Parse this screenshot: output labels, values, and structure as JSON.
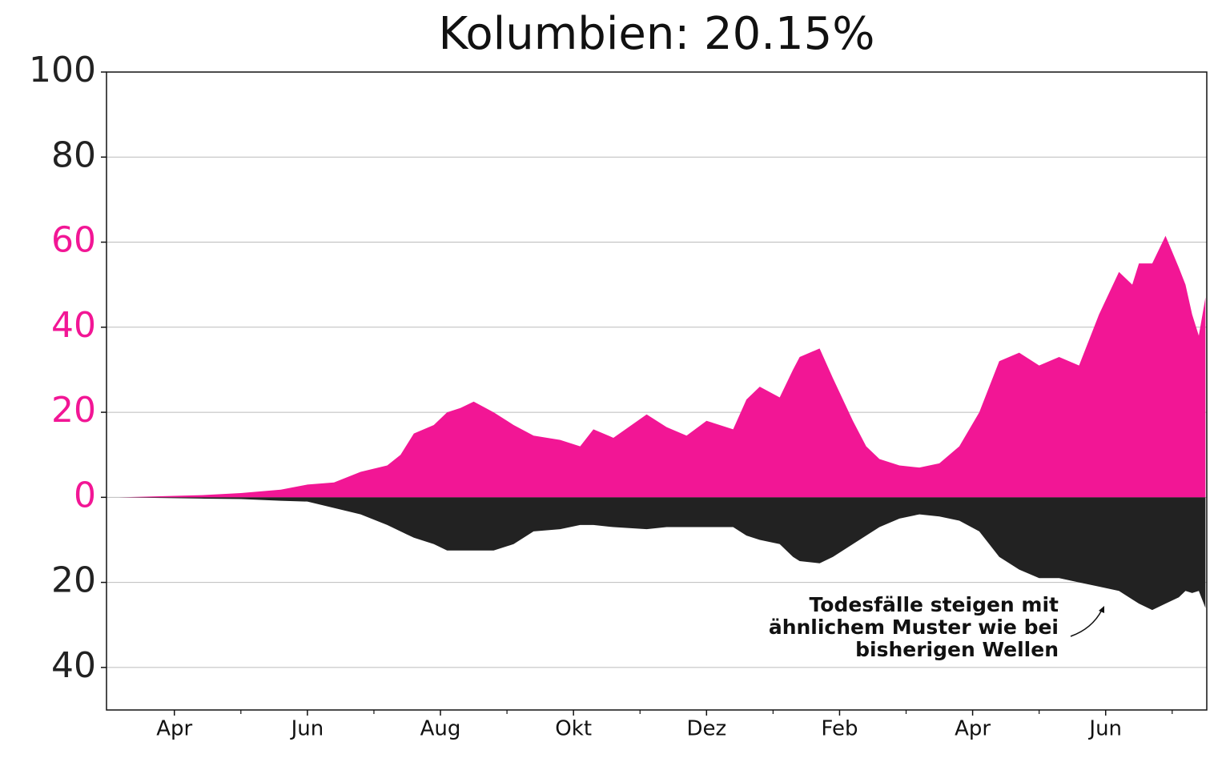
{
  "chart_data": {
    "type": "area",
    "title": "Kolumbien: 20.15%",
    "x": [
      0.17,
      1.4,
      2.0,
      2.6,
      3.0,
      3.4,
      3.8,
      4.2,
      4.4,
      4.6,
      4.9,
      5.1,
      5.3,
      5.5,
      5.8,
      6.1,
      6.4,
      6.8,
      7.1,
      7.3,
      7.6,
      8.1,
      8.4,
      8.7,
      9.0,
      9.4,
      9.6,
      9.8,
      10.1,
      10.3,
      10.4,
      10.7,
      10.9,
      11.2,
      11.4,
      11.6,
      11.9,
      12.2,
      12.5,
      12.8,
      13.1,
      13.4,
      13.7,
      14.0,
      14.3,
      14.6,
      14.9,
      15.2,
      15.4,
      15.5,
      15.7,
      15.9,
      16.1,
      16.2,
      16.3,
      16.4,
      16.5
    ],
    "series": [
      {
        "color": "#f21695",
        "values": [
          0,
          0.5,
          1,
          1.8,
          3,
          3.5,
          6,
          7.5,
          10,
          15,
          17,
          20,
          21,
          22.5,
          20,
          17,
          14.5,
          13.5,
          12,
          16,
          14,
          19.5,
          16.5,
          14.5,
          18,
          16,
          23,
          26,
          23.5,
          30,
          33,
          35,
          28,
          18,
          12,
          9,
          7.5,
          7,
          8,
          12,
          20,
          32,
          34,
          31,
          33,
          31,
          43,
          53,
          50,
          55,
          55,
          61.5,
          54,
          50,
          43,
          38,
          47
        ]
      },
      {
        "color": "#222222",
        "values": [
          0,
          -0.3,
          -0.4,
          -0.8,
          -1,
          -2.5,
          -4,
          -6.5,
          -8,
          -9.5,
          -11,
          -12.5,
          -12.5,
          -12.5,
          -12.5,
          -11,
          -8,
          -7.5,
          -6.5,
          -6.5,
          -7,
          -7.5,
          -7,
          -7,
          -7,
          -7,
          -9,
          -10,
          -11,
          -14,
          -15,
          -15.5,
          -14,
          -11,
          -9,
          -7,
          -5,
          -4,
          -4.5,
          -5.5,
          -8,
          -14,
          -17,
          -19,
          -19,
          -20,
          -21,
          -22,
          -24,
          -25,
          -26.5,
          -25,
          -23.5,
          -22,
          -22.5,
          -22,
          -26
        ]
      }
    ],
    "xlim": [
      -0.02,
      16.52
    ],
    "xticks": [
      {
        "value": 1,
        "label": "Apr"
      },
      {
        "value": 3,
        "label": "Jun"
      },
      {
        "value": 5,
        "label": "Aug"
      },
      {
        "value": 7,
        "label": "Okt"
      },
      {
        "value": 9,
        "label": "Dez"
      },
      {
        "value": 11,
        "label": "Feb"
      },
      {
        "value": 13,
        "label": "Apr"
      },
      {
        "value": 15,
        "label": "Jun"
      }
    ],
    "xminorticks": [
      2,
      4,
      6,
      8,
      10,
      12,
      14,
      16
    ],
    "ylim": [
      -50,
      100
    ],
    "yticks": [
      {
        "value": -40,
        "label": "40"
      },
      {
        "value": -20,
        "label": "20"
      },
      0,
      20,
      40,
      60,
      80,
      100
    ],
    "ytick_colors": [
      "#222222",
      "#222222",
      "#f21695",
      "#f21695",
      "#f21695",
      "#f21695",
      "#222222",
      "#222222"
    ],
    "grid": true,
    "annotation": [
      "Todesfälle steigen mit",
      "ähnlichem Muster wie bei",
      "bisherigen Wellen"
    ]
  }
}
